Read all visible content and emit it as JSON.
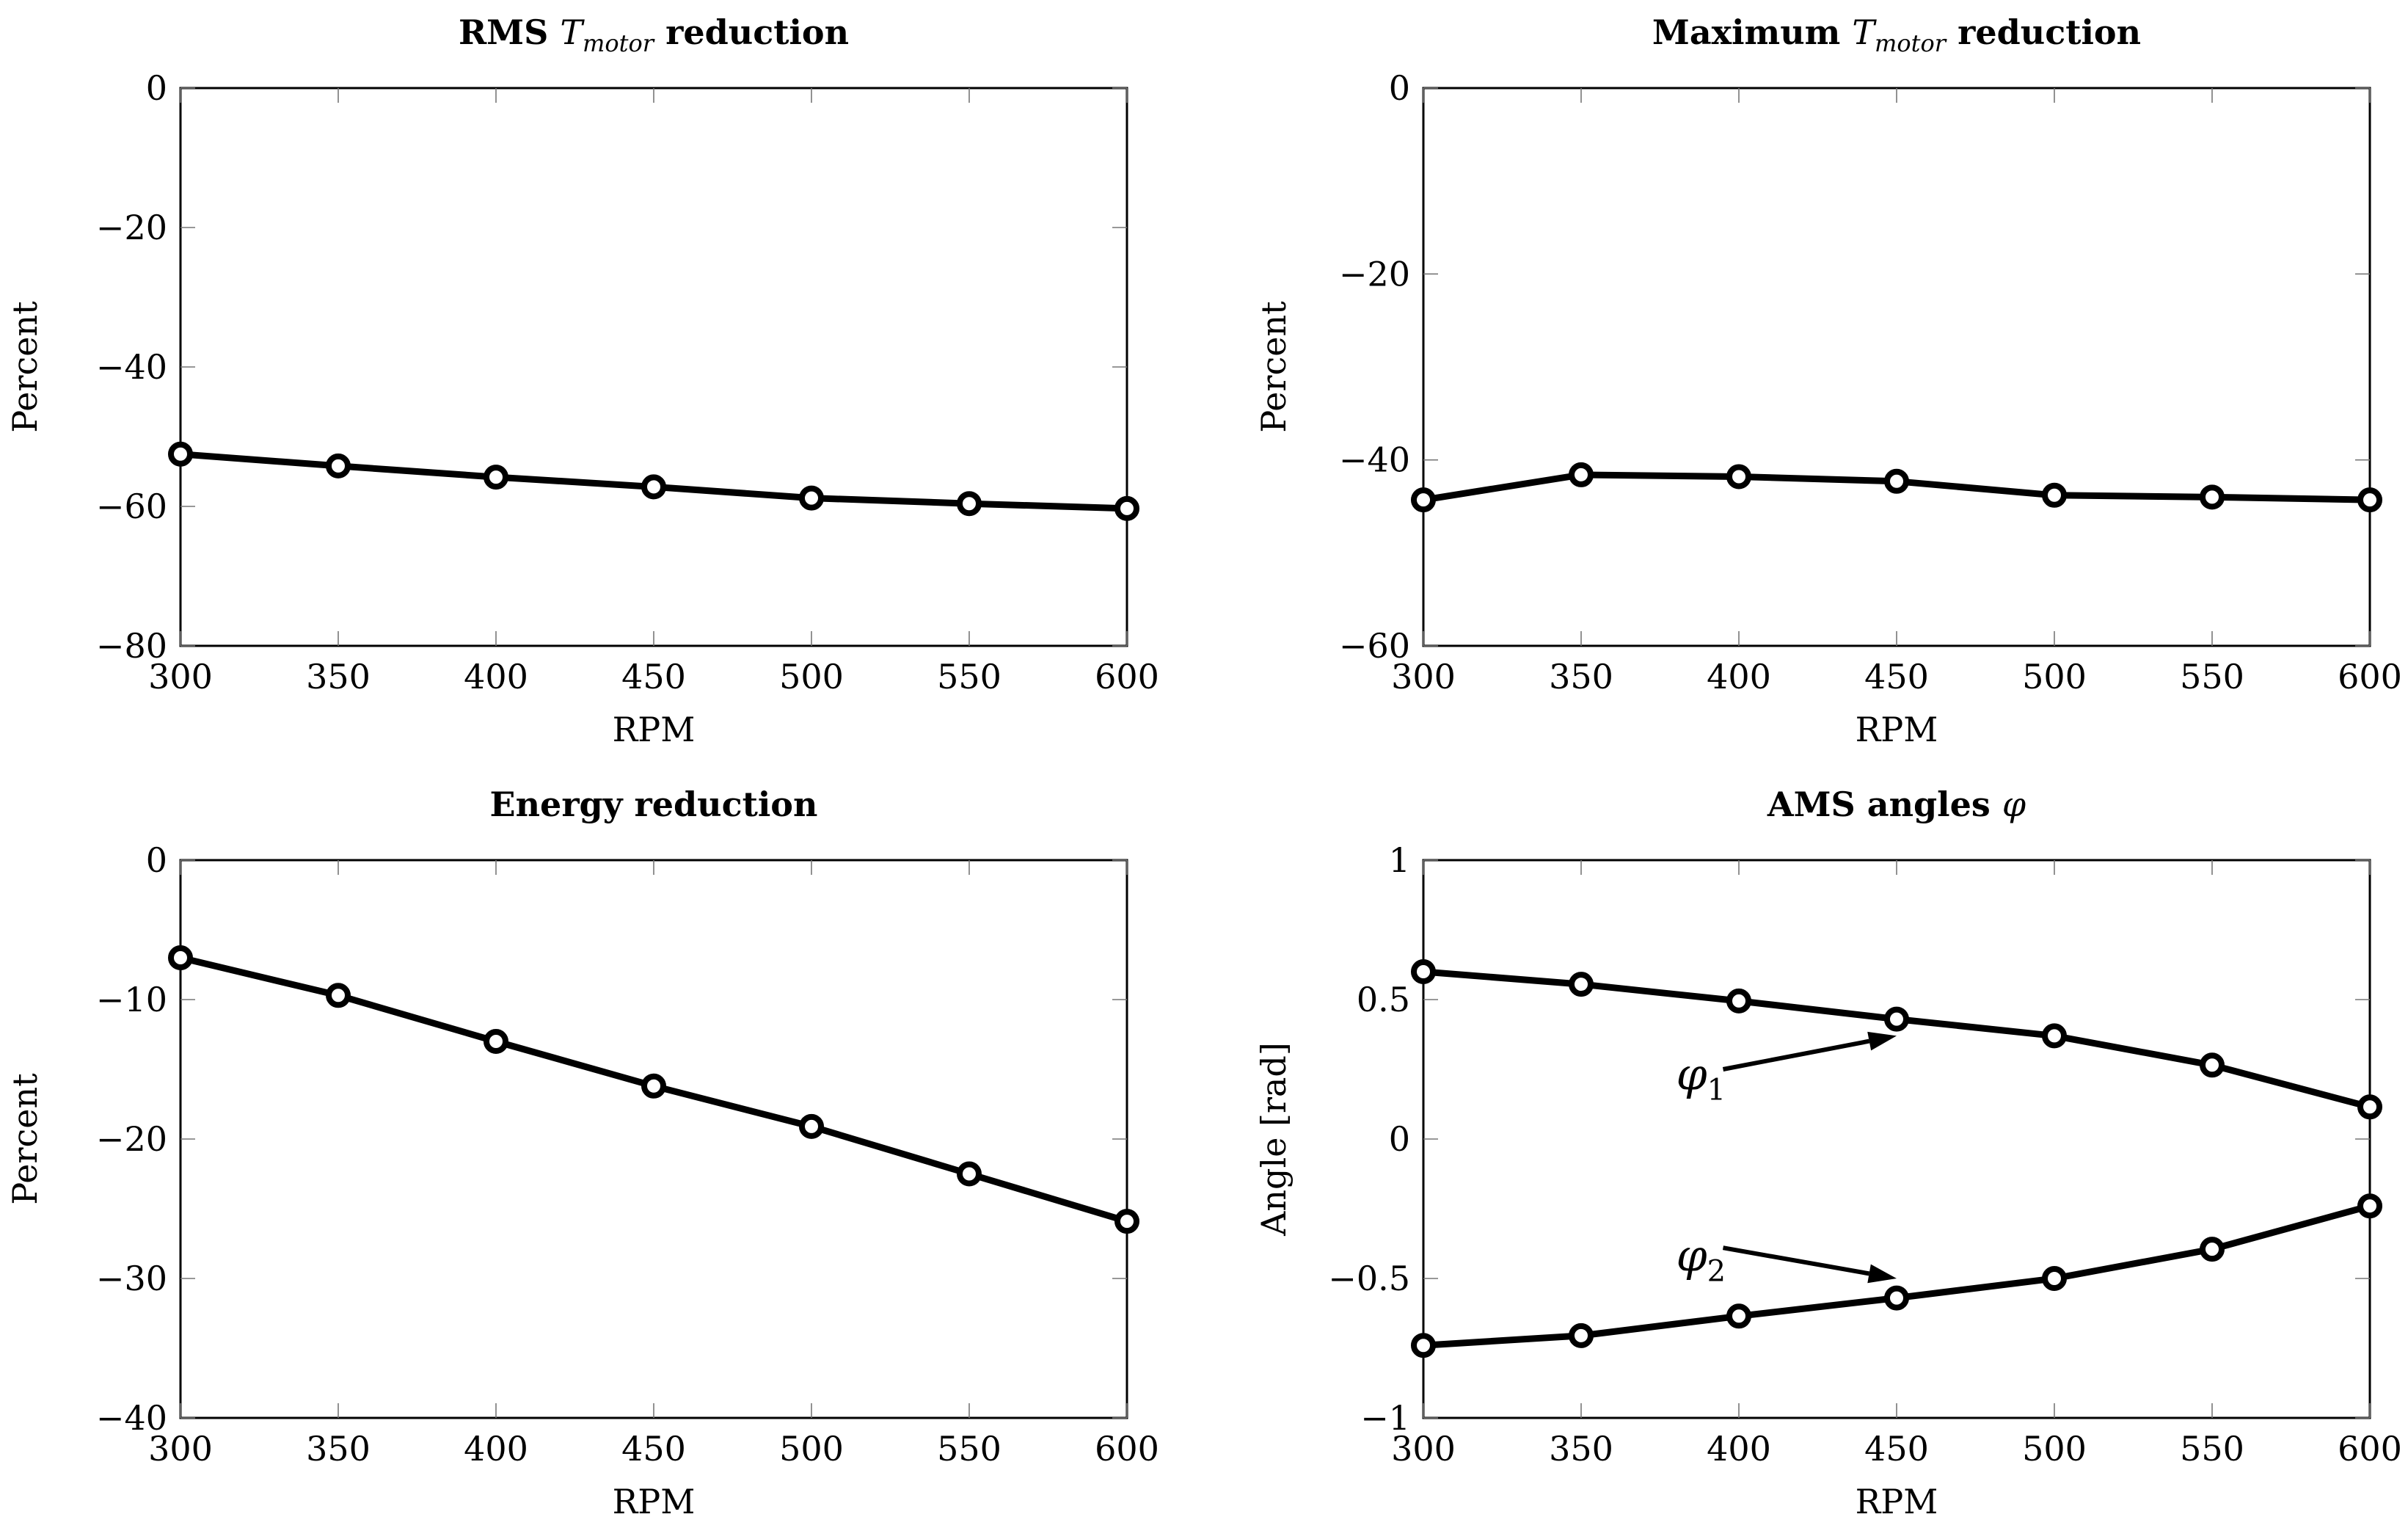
{
  "chart_data": [
    {
      "type": "line",
      "title": "RMS T_motor reduction",
      "title_main": "RMS ",
      "title_math": "T",
      "title_sub": "motor",
      "title_tail": " reduction",
      "xlabel": "RPM",
      "ylabel": "Percent",
      "xlim": [
        300,
        600
      ],
      "ylim": [
        -80,
        0
      ],
      "xticks": [
        300,
        350,
        400,
        450,
        500,
        550,
        600
      ],
      "yticks": [
        0,
        -20,
        -40,
        -60,
        -80
      ],
      "xtick_labels": [
        "300",
        "350",
        "400",
        "450",
        "500",
        "550",
        "600"
      ],
      "ytick_labels": [
        "0",
        "−20",
        "−40",
        "−60",
        "−80"
      ],
      "series": [
        {
          "name": "RMS",
          "x": [
            300,
            350,
            400,
            450,
            500,
            550,
            600
          ],
          "values": [
            -52.5,
            -54.2,
            -55.8,
            -57.2,
            -58.8,
            -59.6,
            -60.3
          ]
        }
      ],
      "annotations": []
    },
    {
      "type": "line",
      "title": "Maximum T_motor reduction",
      "title_main": "Maximum ",
      "title_math": "T",
      "title_sub": "motor",
      "title_tail": " reduction",
      "xlabel": "RPM",
      "ylabel": "Percent",
      "xlim": [
        300,
        600
      ],
      "ylim": [
        -60,
        0
      ],
      "xticks": [
        300,
        350,
        400,
        450,
        500,
        550,
        600
      ],
      "yticks": [
        0,
        -20,
        -40,
        -60
      ],
      "xtick_labels": [
        "300",
        "350",
        "400",
        "450",
        "500",
        "550",
        "600"
      ],
      "ytick_labels": [
        "0",
        "−20",
        "−40",
        "−60"
      ],
      "series": [
        {
          "name": "Maximum",
          "x": [
            300,
            350,
            400,
            450,
            500,
            550,
            600
          ],
          "values": [
            -44.3,
            -41.6,
            -41.8,
            -42.3,
            -43.8,
            -44.0,
            -44.3
          ]
        }
      ],
      "annotations": []
    },
    {
      "type": "line",
      "title": "Energy reduction",
      "title_main": "Energy reduction",
      "title_math": "",
      "title_sub": "",
      "title_tail": "",
      "xlabel": "RPM",
      "ylabel": "Percent",
      "xlim": [
        300,
        600
      ],
      "ylim": [
        -40,
        0
      ],
      "xticks": [
        300,
        350,
        400,
        450,
        500,
        550,
        600
      ],
      "yticks": [
        0,
        -10,
        -20,
        -30,
        -40
      ],
      "xtick_labels": [
        "300",
        "350",
        "400",
        "450",
        "500",
        "550",
        "600"
      ],
      "ytick_labels": [
        "0",
        "−10",
        "−20",
        "−30",
        "−40"
      ],
      "series": [
        {
          "name": "Energy",
          "x": [
            300,
            350,
            400,
            450,
            500,
            550,
            600
          ],
          "values": [
            -7.0,
            -9.7,
            -13.0,
            -16.2,
            -19.1,
            -22.5,
            -25.9
          ]
        }
      ],
      "annotations": []
    },
    {
      "type": "line",
      "title": "AMS angles φ",
      "title_main": "AMS angles ",
      "title_math": "φ",
      "title_sub": "",
      "title_tail": "",
      "xlabel": "RPM",
      "ylabel": "Angle [rad]",
      "xlim": [
        300,
        600
      ],
      "ylim": [
        -1,
        1
      ],
      "xticks": [
        300,
        350,
        400,
        450,
        500,
        550,
        600
      ],
      "yticks": [
        1,
        0.5,
        0,
        -0.5,
        -1
      ],
      "xtick_labels": [
        "300",
        "350",
        "400",
        "450",
        "500",
        "550",
        "600"
      ],
      "ytick_labels": [
        "1",
        "0.5",
        "0",
        "−0.5",
        "−1"
      ],
      "series": [
        {
          "name": "φ1",
          "x": [
            300,
            350,
            400,
            450,
            500,
            550,
            600
          ],
          "values": [
            0.6,
            0.555,
            0.495,
            0.43,
            0.37,
            0.265,
            0.115
          ]
        },
        {
          "name": "φ2",
          "x": [
            300,
            350,
            400,
            450,
            500,
            550,
            600
          ],
          "values": [
            -0.74,
            -0.705,
            -0.635,
            -0.57,
            -0.5,
            -0.395,
            -0.24
          ]
        }
      ],
      "annotations": [
        {
          "base": "φ",
          "sub": "1",
          "text_x": 388,
          "text_y": 0.23,
          "tail_x": 395,
          "tail_y": 0.25,
          "head_x": 450,
          "head_y": 0.37
        },
        {
          "base": "φ",
          "sub": "2",
          "text_x": 388,
          "text_y": -0.42,
          "tail_x": 395,
          "tail_y": -0.39,
          "head_x": 450,
          "head_y": -0.5
        }
      ]
    }
  ]
}
